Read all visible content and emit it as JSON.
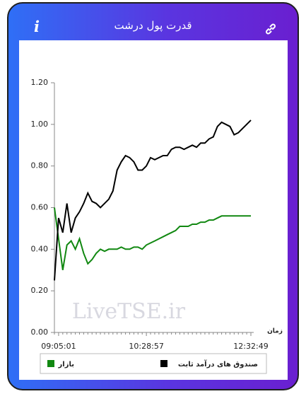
{
  "header": {
    "title": "قدرت پول درشت",
    "info_icon": "i"
  },
  "chart_data": {
    "type": "line",
    "watermark": "LiveTSE.ir",
    "xlabel": "زمان",
    "categories": [
      null,
      "09:05:01",
      null,
      null,
      null,
      null,
      null,
      null,
      null,
      null,
      null,
      null,
      null,
      null,
      null,
      null,
      null,
      null,
      null,
      null,
      null,
      null,
      "10:28:57",
      null,
      null,
      null,
      null,
      null,
      null,
      null,
      null,
      null,
      null,
      null,
      null,
      null,
      null,
      null,
      null,
      null,
      null,
      null,
      null,
      null,
      null,
      null,
      null,
      "12:32:49"
    ],
    "series": [
      {
        "name": "صندوق های درآمد ثابت",
        "color": "#000000",
        "values": [
          0.25,
          0.55,
          0.48,
          0.62,
          0.48,
          0.55,
          0.58,
          0.62,
          0.67,
          0.63,
          0.62,
          0.6,
          0.62,
          0.64,
          0.68,
          0.78,
          0.82,
          0.85,
          0.84,
          0.82,
          0.78,
          0.78,
          0.8,
          0.84,
          0.83,
          0.84,
          0.85,
          0.85,
          0.88,
          0.89,
          0.89,
          0.88,
          0.89,
          0.9,
          0.89,
          0.91,
          0.91,
          0.93,
          0.94,
          0.99,
          1.01,
          1.0,
          0.99,
          0.95,
          0.96,
          0.98,
          1.0,
          1.02
        ]
      },
      {
        "name": "بازار",
        "color": "#118811",
        "values": [
          0.6,
          0.45,
          0.3,
          0.42,
          0.44,
          0.4,
          0.45,
          0.38,
          0.33,
          0.35,
          0.38,
          0.4,
          0.39,
          0.4,
          0.4,
          0.4,
          0.41,
          0.4,
          0.4,
          0.41,
          0.41,
          0.4,
          0.42,
          0.43,
          0.44,
          0.45,
          0.46,
          0.47,
          0.48,
          0.49,
          0.51,
          0.51,
          0.51,
          0.52,
          0.52,
          0.53,
          0.53,
          0.54,
          0.54,
          0.55,
          0.56,
          0.56,
          0.56,
          0.56,
          0.56,
          0.56,
          0.56,
          0.56
        ]
      }
    ],
    "ylim": [
      0,
      1.2
    ],
    "yticks": [
      {
        "value": 0,
        "label": "0.00"
      },
      {
        "value": 0.2,
        "label": "0.20"
      },
      {
        "value": 0.4,
        "label": "0.40"
      },
      {
        "value": 0.6,
        "label": "0.60"
      },
      {
        "value": 0.8,
        "label": "0.80"
      },
      {
        "value": 1,
        "label": "1.00"
      },
      {
        "value": 1.2,
        "label": "1.20"
      }
    ],
    "grid": false
  }
}
